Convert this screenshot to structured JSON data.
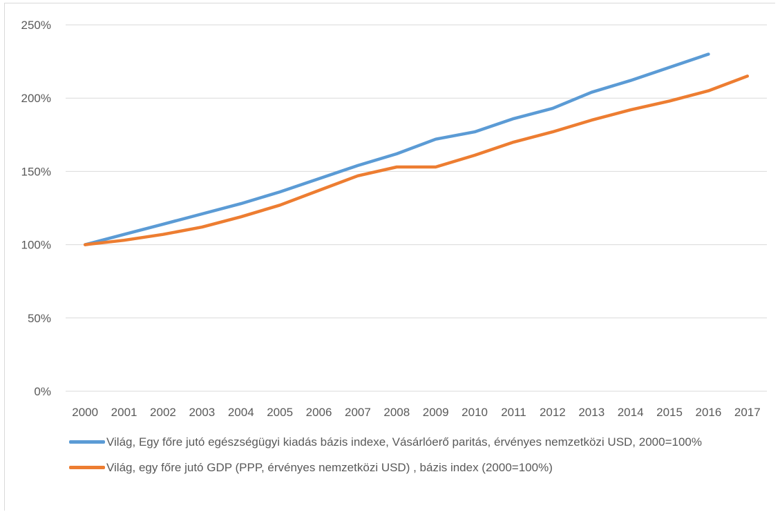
{
  "chart_data": {
    "type": "line",
    "title": "",
    "xlabel": "",
    "ylabel": "",
    "x": [
      "2000",
      "2001",
      "2002",
      "2003",
      "2004",
      "2005",
      "2006",
      "2007",
      "2008",
      "2009",
      "2010",
      "2011",
      "2012",
      "2013",
      "2014",
      "2015",
      "2016",
      "2017"
    ],
    "y_ticks": [
      "0%",
      "50%",
      "100%",
      "150%",
      "200%",
      "250%"
    ],
    "ylim": [
      0,
      250
    ],
    "grid": true,
    "legend_position": "bottom",
    "series": [
      {
        "name": "Világ, Egy főre jutó egészségügyi kiadás bázis indexe, Vásárlóerő paritás, érvényes nemzetközi USD, 2000=100%",
        "color": "#5b9bd5",
        "values": [
          100,
          107,
          114,
          121,
          128,
          136,
          145,
          154,
          162,
          172,
          177,
          186,
          193,
          204,
          212,
          221,
          230,
          null
        ]
      },
      {
        "name": "Világ, egy főre jutó GDP (PPP, érvényes nemzetközi USD) , bázis index (2000=100%)",
        "color": "#ed7d31",
        "values": [
          100,
          103,
          107,
          112,
          119,
          127,
          137,
          147,
          153,
          153,
          161,
          170,
          177,
          185,
          192,
          198,
          205,
          215
        ]
      }
    ]
  }
}
